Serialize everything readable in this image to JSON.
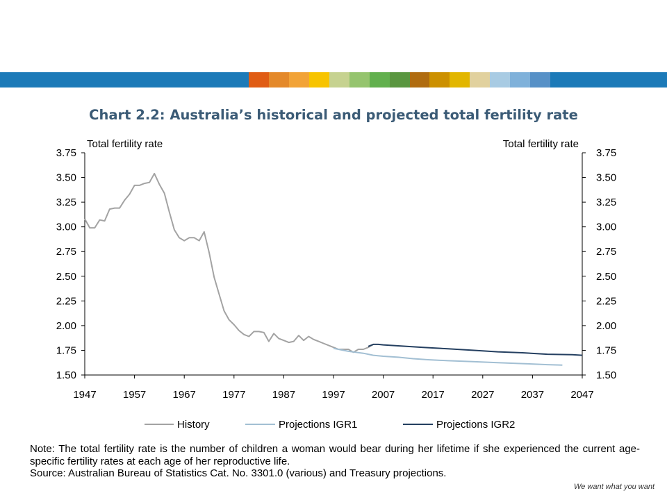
{
  "band_colors": {
    "main": "#1c7ab8",
    "stripes": [
      "#e05c14",
      "#e4892a",
      "#f2a337",
      "#f7c400",
      "#c6d290",
      "#95c46e",
      "#62b04e",
      "#5a9640",
      "#b06c10",
      "#cc9000",
      "#e2b600",
      "#e1d19e",
      "#a8cbe3",
      "#7fb1da",
      "#5791c7"
    ],
    "tail": "#1c7ab8"
  },
  "chart_title": "Chart 2.2: Australia’s historical and projected total fertility rate",
  "chart_data": {
    "type": "line",
    "title": "Chart 2.2: Australia’s historical and projected total fertility rate",
    "ylabel_left": "Total fertility rate",
    "ylabel_right": "Total fertility rate",
    "xlabel": "",
    "xlim": [
      1947,
      2047
    ],
    "ylim": [
      1.5,
      3.75
    ],
    "x_ticks": [
      "1947",
      "1957",
      "1967",
      "1977",
      "1987",
      "1997",
      "2007",
      "2017",
      "2027",
      "2037",
      "2047"
    ],
    "y_ticks": [
      "3.75",
      "3.50",
      "3.25",
      "3.00",
      "2.75",
      "2.50",
      "2.25",
      "2.00",
      "1.75",
      "1.50"
    ],
    "grid": false,
    "legend_position": "bottom",
    "series": [
      {
        "name": "History",
        "color": "#a3a3a3",
        "x": [
          1947,
          1948,
          1949,
          1950,
          1951,
          1952,
          1953,
          1954,
          1955,
          1956,
          1957,
          1958,
          1959,
          1960,
          1961,
          1962,
          1963,
          1964,
          1965,
          1966,
          1967,
          1968,
          1969,
          1970,
          1971,
          1972,
          1973,
          1974,
          1975,
          1976,
          1977,
          1978,
          1979,
          1980,
          1981,
          1982,
          1983,
          1984,
          1985,
          1986,
          1987,
          1988,
          1989,
          1990,
          1991,
          1992,
          1993,
          1994,
          1995,
          1996,
          1997,
          1998,
          1999,
          2000,
          2001,
          2002,
          2003,
          2004,
          2005
        ],
        "y": [
          3.08,
          2.99,
          2.99,
          3.07,
          3.06,
          3.18,
          3.19,
          3.19,
          3.27,
          3.33,
          3.42,
          3.42,
          3.44,
          3.45,
          3.54,
          3.43,
          3.34,
          3.15,
          2.97,
          2.89,
          2.86,
          2.89,
          2.89,
          2.86,
          2.95,
          2.74,
          2.49,
          2.32,
          2.15,
          2.06,
          2.01,
          1.95,
          1.91,
          1.89,
          1.94,
          1.94,
          1.93,
          1.84,
          1.92,
          1.87,
          1.85,
          1.83,
          1.84,
          1.9,
          1.85,
          1.89,
          1.86,
          1.84,
          1.82,
          1.8,
          1.78,
          1.76,
          1.76,
          1.76,
          1.73,
          1.76,
          1.76,
          1.78,
          1.81
        ]
      },
      {
        "name": "Projections IGR1",
        "color": "#a2bfd3",
        "x": [
          1997,
          2000,
          2003,
          2005,
          2007,
          2010,
          2013,
          2016,
          2020,
          2025,
          2030,
          2035,
          2040,
          2043
        ],
        "y": [
          1.77,
          1.74,
          1.72,
          1.7,
          1.69,
          1.68,
          1.665,
          1.655,
          1.645,
          1.635,
          1.625,
          1.615,
          1.605,
          1.6
        ]
      },
      {
        "name": "Projections IGR2",
        "color": "#243f60",
        "x": [
          2004,
          2005,
          2006,
          2007,
          2010,
          2015,
          2020,
          2025,
          2030,
          2035,
          2040,
          2045,
          2047
        ],
        "y": [
          1.79,
          1.81,
          1.81,
          1.805,
          1.795,
          1.78,
          1.765,
          1.75,
          1.735,
          1.725,
          1.71,
          1.705,
          1.7
        ]
      }
    ]
  },
  "note_text": "Note: The total fertility rate is the number of children a woman would bear during her lifetime if she experienced the current age-specific fertility rates at each age of her reproductive life.",
  "source_text": "Source: Australian Bureau of Statistics Cat. No. 3301.0 (various) and Treasury projections.",
  "tagline": "We want what you want"
}
